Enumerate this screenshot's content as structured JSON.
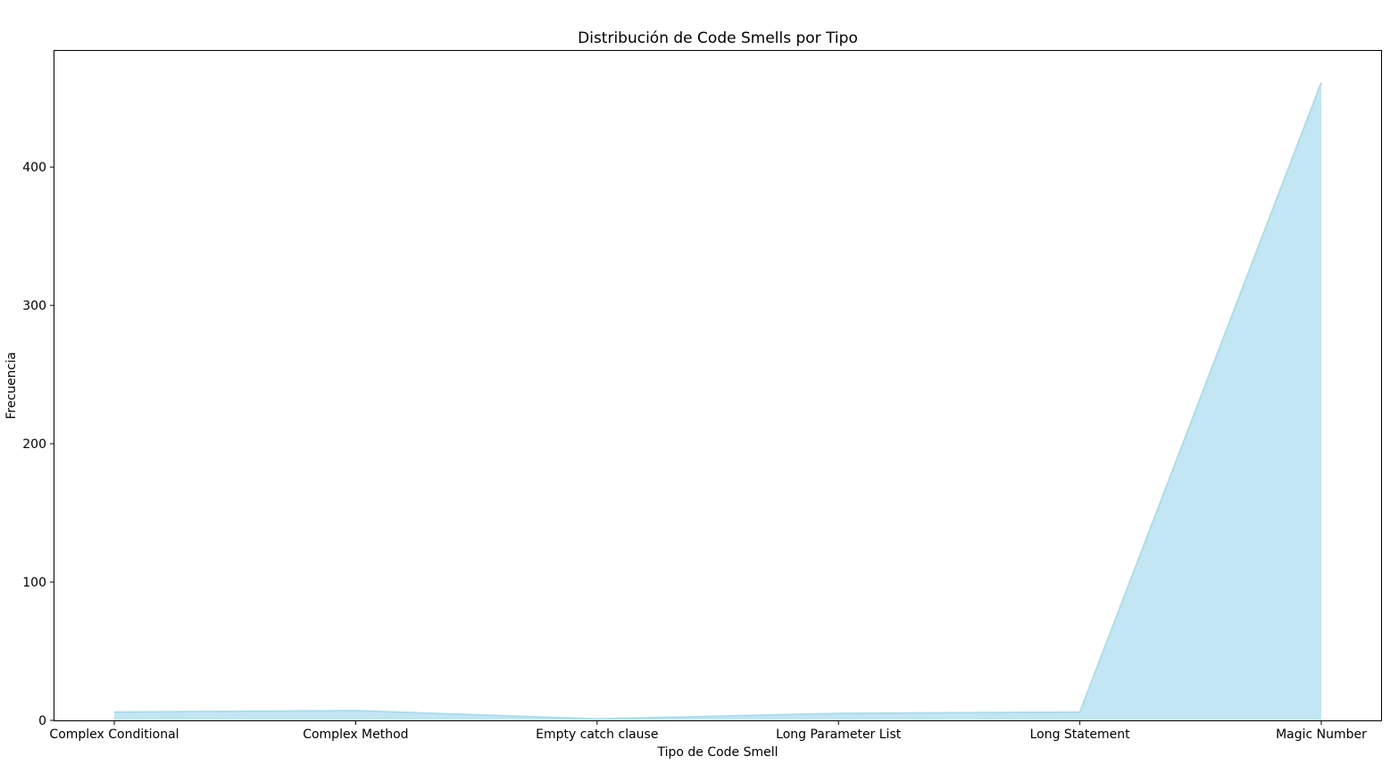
{
  "chart_data": {
    "type": "area",
    "title": "Distribución de Code Smells por Tipo",
    "xlabel": "Tipo de Code Smell",
    "ylabel": "Frecuencia",
    "categories": [
      "Complex Conditional",
      "Complex Method",
      "Empty catch clause",
      "Long Parameter List",
      "Long Statement",
      "Magic Number"
    ],
    "values": [
      6,
      7,
      1,
      5,
      6,
      461
    ],
    "ylim": [
      0,
      484
    ],
    "yticks": [
      0,
      100,
      200,
      300,
      400
    ],
    "grid": false,
    "fill_color": "#87ceeb",
    "fill_opacity": 0.5,
    "line_color": "#add8e6"
  }
}
